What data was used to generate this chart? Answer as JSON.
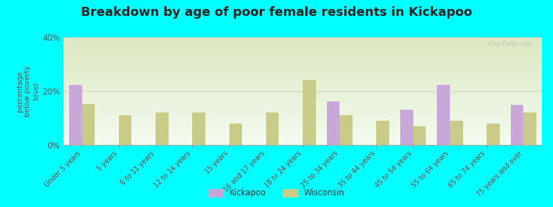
{
  "title": "Breakdown by age of poor female residents in Kickapoo",
  "ylabel": "percentage\nbelow poverty\nlevel",
  "categories": [
    "Under 5 years",
    "5 years",
    "6 to 11 years",
    "12 to 14 years",
    "15 years",
    "16 and 17 years",
    "18 to 24 years",
    "25 to 34 years",
    "35 to 44 years",
    "45 to 54 years",
    "55 to 64 years",
    "65 to 74 years",
    "75 years and over"
  ],
  "kickapoo_values": [
    22.3,
    0,
    0,
    0,
    0,
    0,
    0,
    16.2,
    0,
    13.2,
    22.3,
    0,
    15.0
  ],
  "wisconsin_values": [
    15.2,
    11.0,
    12.0,
    12.0,
    8.0,
    12.0,
    24.0,
    11.0,
    9.0,
    7.0,
    9.0,
    8.0,
    12.0
  ],
  "kickapoo_color": "#c8a8d8",
  "wisconsin_color": "#c8cc88",
  "background_color": "#00ffff",
  "plot_bg_top": "#dce8c0",
  "plot_bg_bottom": "#f4fbf0",
  "ylim": [
    0,
    40
  ],
  "yticks": [
    0,
    20,
    40
  ],
  "ytick_labels": [
    "0%",
    "20%",
    "40%"
  ],
  "title_fontsize": 13,
  "ylabel_fontsize": 7.5,
  "tick_label_fontsize": 7.0,
  "legend_fontsize": 8.5,
  "bar_width": 0.35,
  "watermark": "City-Data.com"
}
